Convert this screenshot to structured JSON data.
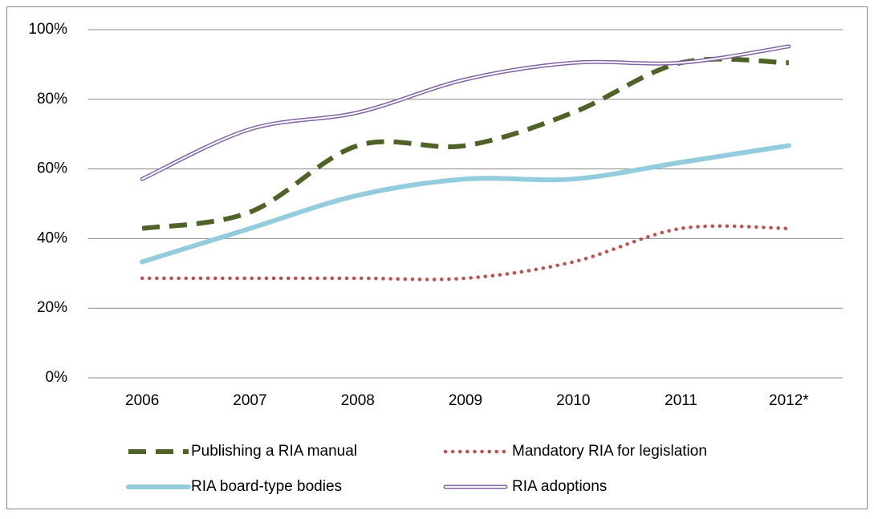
{
  "chart_data": {
    "type": "line",
    "smooth": true,
    "legend": "bottom",
    "grid": true,
    "categories": [
      "2006",
      "2007",
      "2008",
      "2009",
      "2010",
      "2011",
      "2012*"
    ],
    "ylim": [
      0,
      100
    ],
    "yticks": [
      {
        "value": 0,
        "label": "0%"
      },
      {
        "value": 20,
        "label": "20%"
      },
      {
        "value": 40,
        "label": "40%"
      },
      {
        "value": 60,
        "label": "60%"
      },
      {
        "value": 80,
        "label": "80%"
      },
      {
        "value": 100,
        "label": "100%"
      }
    ],
    "series": [
      {
        "name": "Publishing a RIA manual",
        "color": "#4f6228",
        "style": "dashed",
        "values": [
          42.9,
          47.6,
          66.7,
          66.7,
          76.2,
          90.5,
          90.5
        ]
      },
      {
        "name": "Mandatory RIA for legislation",
        "color": "#c0504d",
        "style": "dotted",
        "values": [
          28.6,
          28.6,
          28.6,
          28.6,
          33.3,
          42.9,
          42.9
        ]
      },
      {
        "name": "RIA board-type bodies",
        "color": "#93cddd",
        "style": "solid",
        "values": [
          33.3,
          42.9,
          52.4,
          57.1,
          57.1,
          61.9,
          66.7
        ]
      },
      {
        "name": "RIA adoptions",
        "color": "#8064a2",
        "style": "double",
        "values": [
          57.1,
          71.4,
          76.2,
          85.7,
          90.5,
          90.5,
          95.2
        ]
      }
    ]
  }
}
